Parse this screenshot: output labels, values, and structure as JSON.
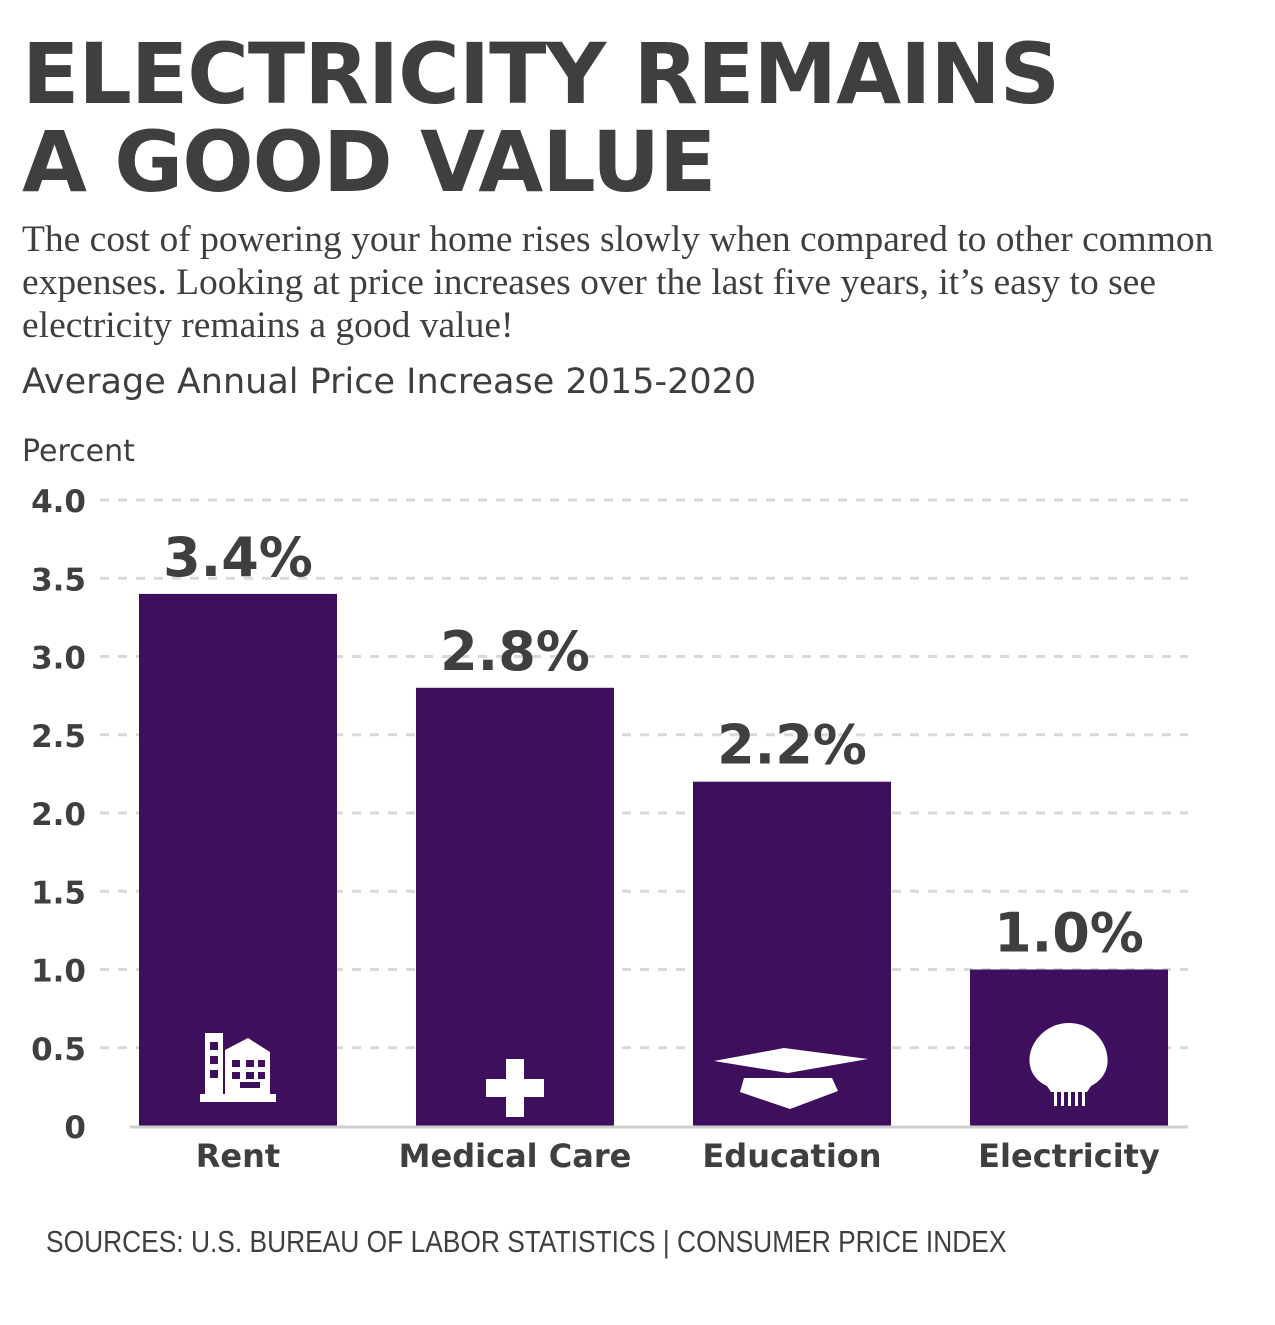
{
  "header": {
    "title_line1": "ELECTRICITY REMAINS",
    "title_line2": "A GOOD VALUE",
    "intro": "The cost of powering your home rises slowly when compared to other common expenses. Looking at price increases over the last five years, it’s easy to see electricity remains a good value!"
  },
  "chart_data": {
    "type": "bar",
    "title": "Average Annual Price Increase 2015-2020",
    "ylabel": "Percent",
    "xlabel": "",
    "categories": [
      "Rent",
      "Medical Care",
      "Education",
      "Electricity"
    ],
    "values": [
      3.4,
      2.8,
      2.2,
      1.0
    ],
    "data_labels": [
      "3.4%",
      "2.8%",
      "2.2%",
      "1.0%"
    ],
    "icons": [
      "building-icon",
      "medical-cross-icon",
      "graduation-cap-icon",
      "light-bulb-icon"
    ],
    "ylim": [
      0,
      4
    ],
    "yticks": [
      "0",
      "0.5",
      "1.0",
      "1.5",
      "2.0",
      "2.5",
      "3.0",
      "3.5",
      "4.0"
    ],
    "grid": true,
    "legend": "none",
    "bar_color": "#3e0f5c",
    "text_color": "#3f3f41",
    "grid_color": "#d9d9d9"
  },
  "footer": {
    "source": "SOURCES: U.S. BUREAU OF LABOR STATISTICS | CONSUMER PRICE INDEX"
  }
}
